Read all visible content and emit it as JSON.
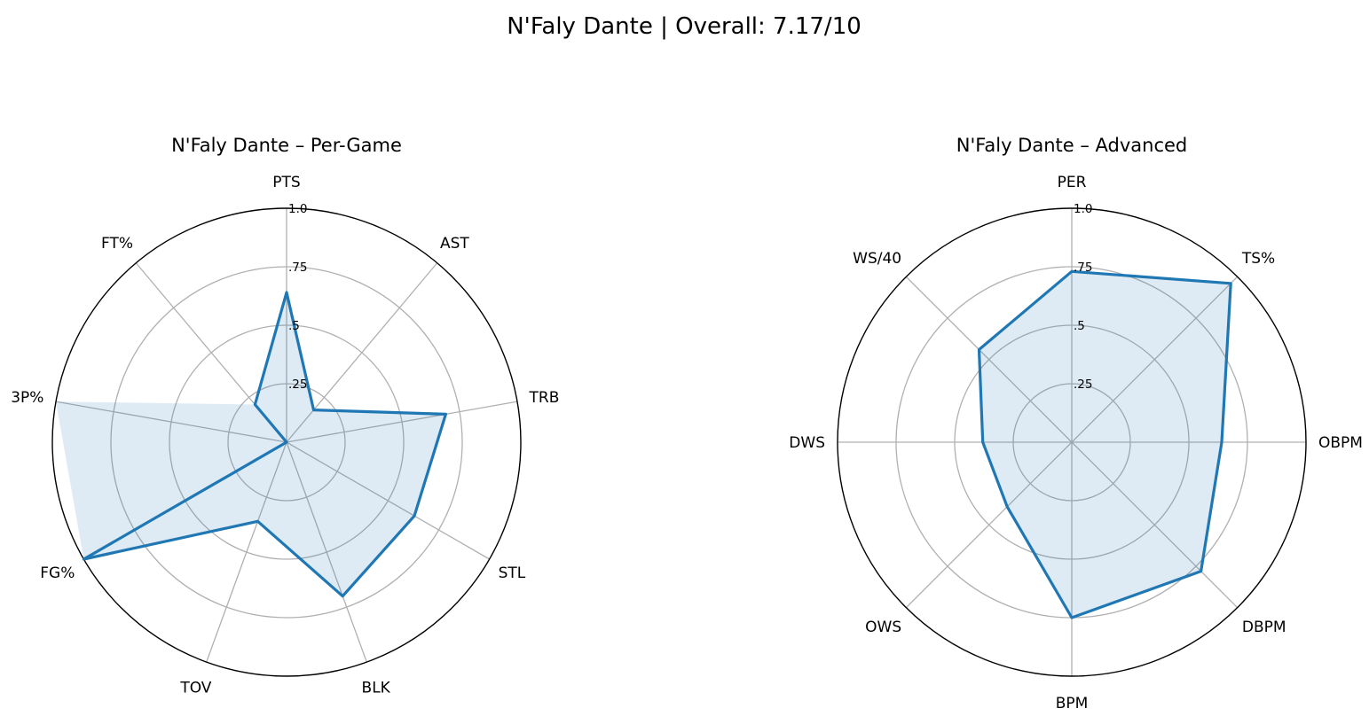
{
  "figure": {
    "title": "N'Faly Dante | Overall: 7.17/10"
  },
  "chart_data": [
    {
      "type": "radar",
      "title": "N'Faly Dante – Per-Game",
      "categories": [
        "PTS",
        "AST",
        "TRB",
        "STL",
        "BLK",
        "TOV",
        "FG%",
        "3P%",
        "FT%"
      ],
      "values": [
        0.64,
        0.18,
        0.69,
        0.63,
        0.7,
        0.36,
        1.0,
        0.0,
        0.21
      ],
      "fill_series": [
        0.64,
        0.18,
        0.69,
        0.63,
        0.7,
        0.36,
        1.0,
        1.0,
        0.21
      ],
      "rlim": [
        0,
        1
      ],
      "rticks": [
        0.25,
        0.5,
        0.75,
        1.0
      ],
      "rtick_labels": [
        ".25",
        ".5",
        ".75",
        "1.0"
      ],
      "grid": true,
      "color": "#1f77b4"
    },
    {
      "type": "radar",
      "title": "N'Faly Dante – Advanced",
      "categories": [
        "PER",
        "TS%",
        "OBPM",
        "DBPM",
        "BPM",
        "OWS",
        "DWS",
        "WS/40"
      ],
      "values": [
        0.73,
        0.96,
        0.64,
        0.78,
        0.75,
        0.39,
        0.38,
        0.56
      ],
      "rlim": [
        0,
        1
      ],
      "rticks": [
        0.25,
        0.5,
        0.75,
        1.0
      ],
      "rtick_labels": [
        ".25",
        ".5",
        ".75",
        "1.0"
      ],
      "grid": true,
      "color": "#1f77b4"
    }
  ]
}
